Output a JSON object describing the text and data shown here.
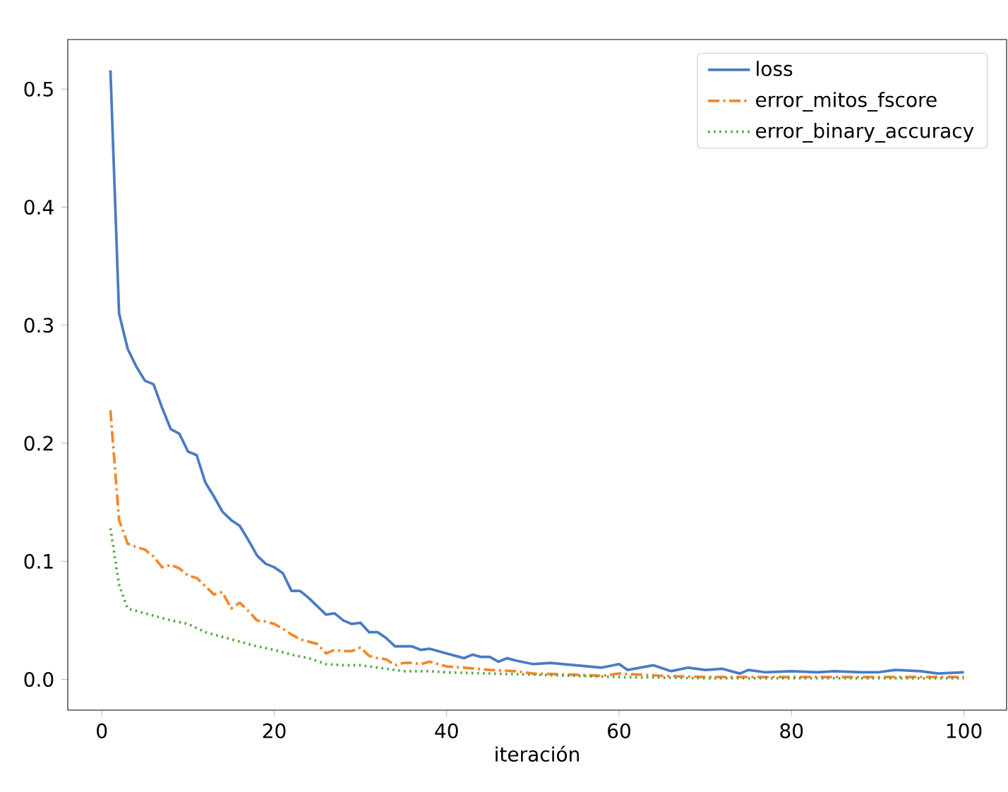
{
  "chart_data": {
    "type": "line",
    "xlabel": "iteración",
    "xlim": [
      -3.95,
      104.95
    ],
    "ylim": [
      -0.026,
      0.542
    ],
    "xticks": [
      0,
      20,
      40,
      60,
      80,
      100
    ],
    "yticks": [
      {
        "value": 0,
        "label": "0.0"
      },
      0.1,
      0.2,
      0.3,
      0.4,
      0.5
    ],
    "grid": false,
    "legend": "top right",
    "marker": "none",
    "series": [
      {
        "name": "loss",
        "color": "#4a7bc4",
        "line_style": "solid",
        "x": [
          1,
          2,
          3,
          4,
          5,
          6,
          7,
          8,
          9,
          10,
          11,
          12,
          13,
          14,
          15,
          16,
          17,
          18,
          19,
          20,
          21,
          22,
          23,
          24,
          25,
          26,
          27,
          28,
          29,
          30,
          31,
          32,
          33,
          34,
          35,
          36,
          37,
          38,
          39,
          40,
          42,
          43,
          44,
          45,
          46,
          47,
          48,
          50,
          52,
          55,
          58,
          60,
          61,
          64,
          66,
          68,
          70,
          72,
          74,
          75,
          77,
          80,
          83,
          85,
          88,
          90,
          92,
          95,
          97,
          100
        ],
        "values": [
          0.516,
          0.31,
          0.28,
          0.265,
          0.253,
          0.25,
          0.23,
          0.212,
          0.208,
          0.193,
          0.19,
          0.167,
          0.155,
          0.142,
          0.135,
          0.13,
          0.118,
          0.105,
          0.098,
          0.095,
          0.09,
          0.075,
          0.075,
          0.069,
          0.062,
          0.055,
          0.056,
          0.05,
          0.047,
          0.048,
          0.04,
          0.04,
          0.035,
          0.028,
          0.028,
          0.028,
          0.025,
          0.026,
          0.024,
          0.022,
          0.018,
          0.021,
          0.019,
          0.019,
          0.015,
          0.018,
          0.016,
          0.013,
          0.014,
          0.012,
          0.01,
          0.013,
          0.008,
          0.012,
          0.007,
          0.01,
          0.008,
          0.009,
          0.005,
          0.008,
          0.006,
          0.007,
          0.006,
          0.007,
          0.006,
          0.006,
          0.008,
          0.007,
          0.005,
          0.006
        ]
      },
      {
        "name": "error_mitos_fscore",
        "color": "#f5862a",
        "line_style": "dashdot",
        "x": [
          1,
          2,
          3,
          4,
          5,
          6,
          7,
          8,
          9,
          10,
          11,
          12,
          13,
          14,
          15,
          16,
          17,
          18,
          19,
          20,
          21,
          22,
          23,
          24,
          25,
          26,
          27,
          28,
          29,
          30,
          31,
          32,
          33,
          34,
          35,
          36,
          37,
          38,
          40,
          42,
          45,
          48,
          50,
          55,
          58,
          60,
          65,
          70,
          75,
          80,
          85,
          90,
          95,
          100
        ],
        "values": [
          0.228,
          0.135,
          0.115,
          0.112,
          0.11,
          0.104,
          0.095,
          0.097,
          0.094,
          0.088,
          0.086,
          0.079,
          0.072,
          0.074,
          0.06,
          0.065,
          0.058,
          0.05,
          0.049,
          0.047,
          0.043,
          0.038,
          0.034,
          0.032,
          0.03,
          0.022,
          0.025,
          0.024,
          0.024,
          0.027,
          0.02,
          0.018,
          0.017,
          0.012,
          0.014,
          0.014,
          0.013,
          0.015,
          0.011,
          0.01,
          0.008,
          0.007,
          0.005,
          0.004,
          0.003,
          0.005,
          0.003,
          0.002,
          0.002,
          0.002,
          0.002,
          0.002,
          0.002,
          0.002
        ]
      },
      {
        "name": "error_binary_accuracy",
        "color": "#5aaa46",
        "line_style": "dotted",
        "x": [
          1,
          2,
          3,
          4,
          5,
          6,
          8,
          10,
          12,
          14,
          16,
          18,
          20,
          22,
          24,
          26,
          28,
          30,
          32,
          35,
          38,
          40,
          45,
          50,
          55,
          60,
          70,
          80,
          90,
          100
        ],
        "values": [
          0.128,
          0.08,
          0.06,
          0.058,
          0.056,
          0.054,
          0.05,
          0.047,
          0.04,
          0.036,
          0.032,
          0.028,
          0.025,
          0.021,
          0.018,
          0.013,
          0.012,
          0.012,
          0.01,
          0.007,
          0.007,
          0.006,
          0.005,
          0.004,
          0.003,
          0.002,
          0.001,
          0.001,
          0.001,
          0.001
        ]
      }
    ]
  }
}
